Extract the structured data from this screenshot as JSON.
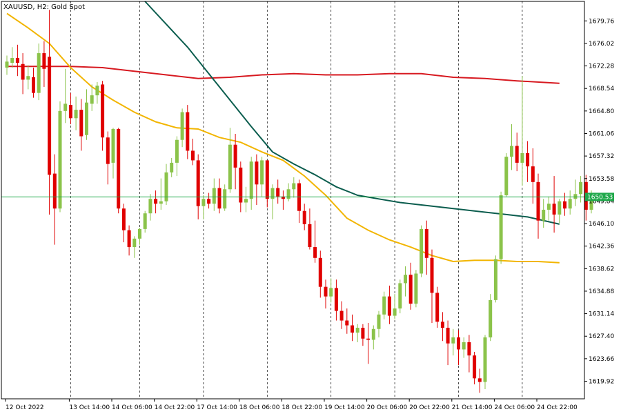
{
  "header": {
    "symbol_title": "XAUUSD, H2:  Gold Spot"
  },
  "colors": {
    "bull": "#8BC34A",
    "bear": "#E00000",
    "ma_fast": "#F2B500",
    "ma_mid": "#0B5D4E",
    "ma_slow": "#D71920",
    "current_price_line": "#1FA84A",
    "grid": "#000000"
  },
  "chart_data": {
    "type": "candlestick",
    "title": "XAUUSD, H2:  Gold Spot",
    "ylim": [
      1617.0,
      1683.0
    ],
    "y_ticks": [
      "1679.76",
      "1676.02",
      "1672.28",
      "1668.54",
      "1664.80",
      "1661.06",
      "1657.32",
      "1653.58",
      "1649.84",
      "1646.10",
      "1642.36",
      "1638.62",
      "1634.88",
      "1631.14",
      "1627.40",
      "1623.66",
      "1619.92"
    ],
    "x_ticks": [
      {
        "label": "12 Oct 2022",
        "index": 0
      },
      {
        "label": "13 Oct 14:00",
        "index": 12
      },
      {
        "label": "14 Oct 06:00",
        "index": 20
      },
      {
        "label": "14 Oct 22:00",
        "index": 28
      },
      {
        "label": "17 Oct 14:00",
        "index": 36
      },
      {
        "label": "18 Oct 06:00",
        "index": 44
      },
      {
        "label": "18 Oct 22:00",
        "index": 52
      },
      {
        "label": "19 Oct 14:00",
        "index": 60
      },
      {
        "label": "20 Oct 06:00",
        "index": 68
      },
      {
        "label": "20 Oct 22:00",
        "index": 76
      },
      {
        "label": "21 Oct 14:00",
        "index": 84
      },
      {
        "label": "24 Oct 06:00",
        "index": 92
      },
      {
        "label": "24 Oct 22:00",
        "index": 100
      }
    ],
    "vgrid_indices": [
      12,
      25,
      37,
      49,
      61,
      73,
      85,
      97
    ],
    "current_price": 1650.53,
    "current_price_label": "1650.53",
    "candles": [
      {
        "o": 1672.0,
        "h": 1674.0,
        "c": 1673.0,
        "l": 1670.8
      },
      {
        "o": 1672.8,
        "h": 1675.4,
        "c": 1673.6,
        "l": 1672.0
      },
      {
        "o": 1673.6,
        "h": 1675.8,
        "c": 1672.8,
        "l": 1670.6
      },
      {
        "o": 1672.6,
        "h": 1674.4,
        "c": 1670.0,
        "l": 1667.6
      },
      {
        "o": 1670.0,
        "h": 1672.4,
        "c": 1670.6,
        "l": 1668.4
      },
      {
        "o": 1670.4,
        "h": 1672.0,
        "c": 1667.8,
        "l": 1667.0
      },
      {
        "o": 1667.8,
        "h": 1676.0,
        "c": 1674.4,
        "l": 1666.6
      },
      {
        "o": 1674.4,
        "h": 1676.4,
        "c": 1671.8,
        "l": 1668.8
      },
      {
        "o": 1673.8,
        "h": 1681.6,
        "c": 1654.2,
        "l": 1647.6
      },
      {
        "o": 1654.4,
        "h": 1657.6,
        "c": 1648.6,
        "l": 1642.6
      },
      {
        "o": 1648.6,
        "h": 1666.4,
        "c": 1664.8,
        "l": 1648.0
      },
      {
        "o": 1664.8,
        "h": 1671.8,
        "c": 1666.0,
        "l": 1662.8
      },
      {
        "o": 1665.8,
        "h": 1667.8,
        "c": 1663.6,
        "l": 1662.6
      },
      {
        "o": 1663.6,
        "h": 1667.2,
        "c": 1665.0,
        "l": 1661.6
      },
      {
        "o": 1665.0,
        "h": 1666.8,
        "c": 1660.6,
        "l": 1658.2
      },
      {
        "o": 1660.8,
        "h": 1668.4,
        "c": 1666.2,
        "l": 1660.0
      },
      {
        "o": 1666.0,
        "h": 1669.2,
        "c": 1667.4,
        "l": 1664.8
      },
      {
        "o": 1667.4,
        "h": 1669.6,
        "c": 1669.0,
        "l": 1666.0
      },
      {
        "o": 1669.2,
        "h": 1669.8,
        "c": 1660.4,
        "l": 1658.2
      },
      {
        "o": 1660.4,
        "h": 1661.4,
        "c": 1656.0,
        "l": 1652.6
      },
      {
        "o": 1656.2,
        "h": 1662.0,
        "c": 1661.8,
        "l": 1653.6
      },
      {
        "o": 1661.8,
        "h": 1662.0,
        "c": 1648.6,
        "l": 1647.8
      },
      {
        "o": 1648.6,
        "h": 1649.4,
        "c": 1645.0,
        "l": 1643.0
      },
      {
        "o": 1645.0,
        "h": 1645.8,
        "c": 1642.2,
        "l": 1640.8
      },
      {
        "o": 1642.2,
        "h": 1644.0,
        "c": 1643.6,
        "l": 1640.4
      },
      {
        "o": 1643.6,
        "h": 1645.4,
        "c": 1645.2,
        "l": 1642.6
      },
      {
        "o": 1645.2,
        "h": 1648.2,
        "c": 1647.8,
        "l": 1644.6
      },
      {
        "o": 1647.8,
        "h": 1651.0,
        "c": 1650.2,
        "l": 1646.6
      },
      {
        "o": 1650.2,
        "h": 1651.6,
        "c": 1649.4,
        "l": 1647.8
      },
      {
        "o": 1649.4,
        "h": 1653.6,
        "c": 1649.8,
        "l": 1648.4
      },
      {
        "o": 1649.8,
        "h": 1656.0,
        "c": 1654.6,
        "l": 1649.2
      },
      {
        "o": 1654.6,
        "h": 1657.0,
        "c": 1656.2,
        "l": 1653.8
      },
      {
        "o": 1656.2,
        "h": 1660.6,
        "c": 1660.0,
        "l": 1654.0
      },
      {
        "o": 1660.0,
        "h": 1665.2,
        "c": 1664.6,
        "l": 1658.8
      },
      {
        "o": 1664.6,
        "h": 1665.8,
        "c": 1658.2,
        "l": 1656.8
      },
      {
        "o": 1658.2,
        "h": 1660.2,
        "c": 1656.6,
        "l": 1655.8
      },
      {
        "o": 1656.6,
        "h": 1657.6,
        "c": 1649.0,
        "l": 1646.8
      },
      {
        "o": 1649.0,
        "h": 1650.8,
        "c": 1650.2,
        "l": 1646.8
      },
      {
        "o": 1650.2,
        "h": 1651.2,
        "c": 1649.4,
        "l": 1648.6
      },
      {
        "o": 1649.4,
        "h": 1653.6,
        "c": 1652.0,
        "l": 1648.2
      },
      {
        "o": 1652.0,
        "h": 1653.6,
        "c": 1648.6,
        "l": 1647.8
      },
      {
        "o": 1648.6,
        "h": 1652.6,
        "c": 1651.8,
        "l": 1648.2
      },
      {
        "o": 1651.8,
        "h": 1662.0,
        "c": 1659.2,
        "l": 1651.2
      },
      {
        "o": 1659.2,
        "h": 1661.0,
        "c": 1655.4,
        "l": 1651.8
      },
      {
        "o": 1655.4,
        "h": 1656.4,
        "c": 1649.6,
        "l": 1648.0
      },
      {
        "o": 1649.6,
        "h": 1652.2,
        "c": 1650.2,
        "l": 1648.0
      },
      {
        "o": 1650.2,
        "h": 1657.2,
        "c": 1656.4,
        "l": 1648.4
      },
      {
        "o": 1656.4,
        "h": 1657.6,
        "c": 1652.6,
        "l": 1649.2
      },
      {
        "o": 1652.6,
        "h": 1657.2,
        "c": 1656.6,
        "l": 1650.6
      },
      {
        "o": 1656.6,
        "h": 1656.2,
        "c": 1650.2,
        "l": 1648.8
      },
      {
        "o": 1650.2,
        "h": 1652.6,
        "c": 1652.0,
        "l": 1646.8
      },
      {
        "o": 1652.0,
        "h": 1653.4,
        "c": 1650.6,
        "l": 1649.4
      },
      {
        "o": 1650.6,
        "h": 1651.6,
        "c": 1650.2,
        "l": 1648.4
      },
      {
        "o": 1650.2,
        "h": 1652.8,
        "c": 1651.8,
        "l": 1649.8
      },
      {
        "o": 1651.8,
        "h": 1653.8,
        "c": 1652.8,
        "l": 1650.4
      },
      {
        "o": 1652.8,
        "h": 1653.4,
        "c": 1648.2,
        "l": 1646.2
      },
      {
        "o": 1648.2,
        "h": 1649.4,
        "c": 1646.0,
        "l": 1645.0
      },
      {
        "o": 1646.0,
        "h": 1648.6,
        "c": 1642.2,
        "l": 1641.8
      },
      {
        "o": 1642.2,
        "h": 1646.6,
        "c": 1640.4,
        "l": 1639.6
      },
      {
        "o": 1640.4,
        "h": 1641.6,
        "c": 1635.6,
        "l": 1633.8
      },
      {
        "o": 1635.6,
        "h": 1636.8,
        "c": 1634.0,
        "l": 1632.0
      },
      {
        "o": 1634.0,
        "h": 1637.0,
        "c": 1635.4,
        "l": 1633.0
      },
      {
        "o": 1635.4,
        "h": 1636.8,
        "c": 1631.6,
        "l": 1630.0
      },
      {
        "o": 1631.6,
        "h": 1633.2,
        "c": 1630.0,
        "l": 1628.6
      },
      {
        "o": 1630.0,
        "h": 1632.0,
        "c": 1629.2,
        "l": 1627.8
      },
      {
        "o": 1629.2,
        "h": 1631.0,
        "c": 1628.0,
        "l": 1626.6
      },
      {
        "o": 1628.0,
        "h": 1629.4,
        "c": 1628.8,
        "l": 1626.4
      },
      {
        "o": 1628.8,
        "h": 1629.4,
        "c": 1627.0,
        "l": 1625.8
      },
      {
        "o": 1627.0,
        "h": 1629.6,
        "c": 1626.8,
        "l": 1622.8
      },
      {
        "o": 1626.8,
        "h": 1629.2,
        "c": 1628.6,
        "l": 1625.2
      },
      {
        "o": 1628.6,
        "h": 1631.6,
        "c": 1631.0,
        "l": 1627.2
      },
      {
        "o": 1631.0,
        "h": 1634.8,
        "c": 1634.0,
        "l": 1630.2
      },
      {
        "o": 1634.0,
        "h": 1635.8,
        "c": 1630.8,
        "l": 1629.4
      },
      {
        "o": 1630.8,
        "h": 1634.4,
        "c": 1632.0,
        "l": 1630.2
      },
      {
        "o": 1632.0,
        "h": 1636.8,
        "c": 1636.2,
        "l": 1631.2
      },
      {
        "o": 1636.2,
        "h": 1639.0,
        "c": 1637.6,
        "l": 1634.0
      },
      {
        "o": 1637.6,
        "h": 1639.6,
        "c": 1632.8,
        "l": 1631.8
      },
      {
        "o": 1632.8,
        "h": 1638.4,
        "c": 1637.8,
        "l": 1632.2
      },
      {
        "o": 1637.8,
        "h": 1645.8,
        "c": 1645.2,
        "l": 1637.2
      },
      {
        "o": 1645.2,
        "h": 1646.6,
        "c": 1640.4,
        "l": 1637.6
      },
      {
        "o": 1640.4,
        "h": 1641.8,
        "c": 1634.6,
        "l": 1629.6
      },
      {
        "o": 1634.6,
        "h": 1635.6,
        "c": 1629.8,
        "l": 1628.8
      },
      {
        "o": 1629.8,
        "h": 1631.4,
        "c": 1628.8,
        "l": 1626.6
      },
      {
        "o": 1628.8,
        "h": 1630.0,
        "c": 1626.2,
        "l": 1622.6
      },
      {
        "o": 1626.2,
        "h": 1628.6,
        "c": 1627.2,
        "l": 1624.2
      },
      {
        "o": 1627.2,
        "h": 1628.4,
        "c": 1625.2,
        "l": 1622.6
      },
      {
        "o": 1625.2,
        "h": 1627.2,
        "c": 1626.4,
        "l": 1623.8
      },
      {
        "o": 1626.4,
        "h": 1627.6,
        "c": 1624.2,
        "l": 1621.4
      },
      {
        "o": 1624.2,
        "h": 1624.8,
        "c": 1620.4,
        "l": 1619.4
      },
      {
        "o": 1620.4,
        "h": 1622.0,
        "c": 1619.8,
        "l": 1618.0
      },
      {
        "o": 1619.8,
        "h": 1627.6,
        "c": 1627.2,
        "l": 1618.6
      },
      {
        "o": 1627.2,
        "h": 1634.4,
        "c": 1633.4,
        "l": 1626.6
      },
      {
        "o": 1633.4,
        "h": 1640.8,
        "c": 1640.2,
        "l": 1633.0
      },
      {
        "o": 1640.2,
        "h": 1651.4,
        "c": 1650.8,
        "l": 1639.4
      },
      {
        "o": 1650.8,
        "h": 1657.8,
        "c": 1657.2,
        "l": 1650.6
      },
      {
        "o": 1657.2,
        "h": 1662.6,
        "c": 1659.0,
        "l": 1655.0
      },
      {
        "o": 1659.0,
        "h": 1661.2,
        "c": 1656.2,
        "l": 1654.8
      },
      {
        "o": 1656.2,
        "h": 1670.6,
        "c": 1657.8,
        "l": 1652.4
      },
      {
        "o": 1657.8,
        "h": 1659.8,
        "c": 1655.6,
        "l": 1653.0
      },
      {
        "o": 1655.6,
        "h": 1658.6,
        "c": 1653.0,
        "l": 1649.4
      },
      {
        "o": 1653.0,
        "h": 1654.4,
        "c": 1646.6,
        "l": 1643.6
      },
      {
        "o": 1646.6,
        "h": 1650.2,
        "c": 1648.4,
        "l": 1645.4
      },
      {
        "o": 1648.4,
        "h": 1650.6,
        "c": 1649.4,
        "l": 1646.6
      },
      {
        "o": 1649.4,
        "h": 1654.0,
        "c": 1647.6,
        "l": 1644.6
      },
      {
        "o": 1647.6,
        "h": 1650.2,
        "c": 1649.8,
        "l": 1646.2
      },
      {
        "o": 1649.8,
        "h": 1651.2,
        "c": 1648.6,
        "l": 1647.4
      },
      {
        "o": 1648.6,
        "h": 1651.6,
        "c": 1650.2,
        "l": 1647.6
      },
      {
        "o": 1650.2,
        "h": 1653.4,
        "c": 1651.0,
        "l": 1649.0
      },
      {
        "o": 1651.0,
        "h": 1654.0,
        "c": 1653.0,
        "l": 1649.6
      },
      {
        "o": 1653.0,
        "h": 1654.2,
        "c": 1648.4,
        "l": 1646.6
      },
      {
        "o": 1648.4,
        "h": 1651.6,
        "c": 1650.6,
        "l": 1647.8
      }
    ],
    "ma_fast": [
      [
        0,
        1681.0
      ],
      [
        4,
        1678.6
      ],
      [
        8,
        1676.0
      ],
      [
        12,
        1672.0
      ],
      [
        16,
        1668.8
      ],
      [
        20,
        1666.6
      ],
      [
        24,
        1664.6
      ],
      [
        28,
        1663.0
      ],
      [
        32,
        1662.0
      ],
      [
        36,
        1661.8
      ],
      [
        40,
        1660.4
      ],
      [
        44,
        1659.6
      ],
      [
        48,
        1658.0
      ],
      [
        52,
        1656.6
      ],
      [
        56,
        1654.0
      ],
      [
        60,
        1650.8
      ],
      [
        64,
        1647.0
      ],
      [
        68,
        1645.0
      ],
      [
        72,
        1643.4
      ],
      [
        76,
        1642.2
      ],
      [
        80,
        1640.8
      ],
      [
        84,
        1639.8
      ],
      [
        88,
        1640.0
      ],
      [
        92,
        1640.0
      ],
      [
        96,
        1639.8
      ],
      [
        100,
        1639.8
      ],
      [
        104,
        1639.6
      ]
    ],
    "ma_mid": [
      [
        26,
        1683.0
      ],
      [
        30,
        1679.2
      ],
      [
        34,
        1675.4
      ],
      [
        38,
        1671.0
      ],
      [
        42,
        1666.6
      ],
      [
        46,
        1662.2
      ],
      [
        50,
        1658.0
      ],
      [
        54,
        1656.0
      ],
      [
        58,
        1654.2
      ],
      [
        62,
        1652.2
      ],
      [
        66,
        1650.8
      ],
      [
        70,
        1650.2
      ],
      [
        74,
        1649.6
      ],
      [
        78,
        1649.2
      ],
      [
        82,
        1648.8
      ],
      [
        86,
        1648.4
      ],
      [
        90,
        1648.0
      ],
      [
        94,
        1647.6
      ],
      [
        98,
        1647.2
      ],
      [
        102,
        1646.4
      ],
      [
        104,
        1646.0
      ]
    ],
    "ma_slow": [
      [
        0,
        1672.2
      ],
      [
        6,
        1672.2
      ],
      [
        12,
        1672.2
      ],
      [
        18,
        1672.0
      ],
      [
        24,
        1671.4
      ],
      [
        30,
        1670.8
      ],
      [
        36,
        1670.2
      ],
      [
        42,
        1670.4
      ],
      [
        48,
        1670.8
      ],
      [
        54,
        1671.0
      ],
      [
        60,
        1670.8
      ],
      [
        66,
        1670.8
      ],
      [
        72,
        1671.0
      ],
      [
        78,
        1671.0
      ],
      [
        84,
        1670.4
      ],
      [
        90,
        1670.2
      ],
      [
        96,
        1669.8
      ],
      [
        104,
        1669.4
      ]
    ]
  }
}
